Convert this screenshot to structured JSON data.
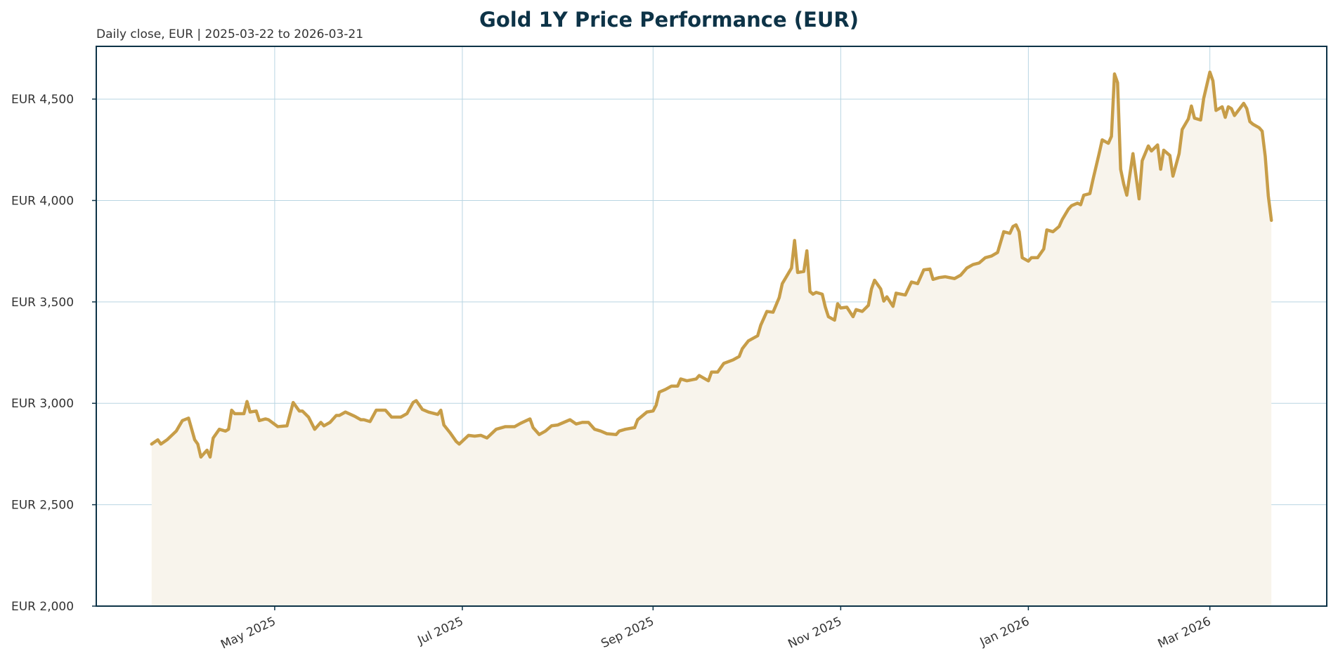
{
  "chart_data": {
    "type": "line",
    "title": "Gold 1Y Price Performance (EUR)",
    "subtitle": "Daily close, EUR | 2025-03-22 to 2026-03-21",
    "color": "#c79d48",
    "area_color": "#f8f4ec",
    "grid": true,
    "xlim": [
      "2025-03-04",
      "2026-04-08"
    ],
    "xticks": [
      {
        "value": "2025-05-01",
        "label": "May 2025"
      },
      {
        "value": "2025-07-01",
        "label": "Jul 2025"
      },
      {
        "value": "2025-09-01",
        "label": "Sep 2025"
      },
      {
        "value": "2025-11-01",
        "label": "Nov 2025"
      },
      {
        "value": "2026-01-01",
        "label": "Jan 2026"
      },
      {
        "value": "2026-03-01",
        "label": "Mar 2026"
      }
    ],
    "ylim": [
      2000,
      4760
    ],
    "yticks": [
      {
        "value": 2000,
        "label": "EUR 2,000"
      },
      {
        "value": 2500,
        "label": "EUR 2,500"
      },
      {
        "value": 3000,
        "label": "EUR 3,000"
      },
      {
        "value": 3500,
        "label": "EUR 3,500"
      },
      {
        "value": 4000,
        "label": "EUR 4,000"
      },
      {
        "value": 4500,
        "label": "EUR 4,500"
      }
    ],
    "x": [
      "2025-03-22",
      "2025-03-24",
      "2025-03-25",
      "2025-03-27",
      "2025-03-30",
      "2025-04-01",
      "2025-04-03",
      "2025-04-05",
      "2025-04-06",
      "2025-04-07",
      "2025-04-09",
      "2025-04-10",
      "2025-04-11",
      "2025-04-13",
      "2025-04-15",
      "2025-04-16",
      "2025-04-17",
      "2025-04-18",
      "2025-04-21",
      "2025-04-22",
      "2025-04-23",
      "2025-04-25",
      "2025-04-26",
      "2025-04-28",
      "2025-04-29",
      "2025-05-02",
      "2025-05-05",
      "2025-05-07",
      "2025-05-09",
      "2025-05-10",
      "2025-05-12",
      "2025-05-14",
      "2025-05-16",
      "2025-05-17",
      "2025-05-19",
      "2025-05-21",
      "2025-05-22",
      "2025-05-24",
      "2025-05-27",
      "2025-05-29",
      "2025-05-30",
      "2025-06-01",
      "2025-06-03",
      "2025-06-05",
      "2025-06-06",
      "2025-06-08",
      "2025-06-09",
      "2025-06-11",
      "2025-06-13",
      "2025-06-15",
      "2025-06-16",
      "2025-06-18",
      "2025-06-20",
      "2025-06-23",
      "2025-06-24",
      "2025-06-25",
      "2025-06-27",
      "2025-06-29",
      "2025-06-30",
      "2025-07-03",
      "2025-07-05",
      "2025-07-07",
      "2025-07-09",
      "2025-07-12",
      "2025-07-15",
      "2025-07-18",
      "2025-07-20",
      "2025-07-23",
      "2025-07-24",
      "2025-07-26",
      "2025-07-28",
      "2025-07-30",
      "2025-08-01",
      "2025-08-05",
      "2025-08-07",
      "2025-08-09",
      "2025-08-11",
      "2025-08-13",
      "2025-08-15",
      "2025-08-17",
      "2025-08-20",
      "2025-08-21",
      "2025-08-23",
      "2025-08-26",
      "2025-08-27",
      "2025-08-30",
      "2025-09-01",
      "2025-09-02",
      "2025-09-03",
      "2025-09-05",
      "2025-09-07",
      "2025-09-09",
      "2025-09-10",
      "2025-09-12",
      "2025-09-15",
      "2025-09-16",
      "2025-09-19",
      "2025-09-20",
      "2025-09-22",
      "2025-09-24",
      "2025-09-27",
      "2025-09-29",
      "2025-09-30",
      "2025-10-02",
      "2025-10-05",
      "2025-10-06",
      "2025-10-08",
      "2025-10-10",
      "2025-10-12",
      "2025-10-13",
      "2025-10-16",
      "2025-10-17",
      "2025-10-18",
      "2025-10-20",
      "2025-10-21",
      "2025-10-22",
      "2025-10-23",
      "2025-10-24",
      "2025-10-26",
      "2025-10-27",
      "2025-10-28",
      "2025-10-30",
      "2025-10-31",
      "2025-11-01",
      "2025-11-03",
      "2025-11-05",
      "2025-11-06",
      "2025-11-08",
      "2025-11-10",
      "2025-11-11",
      "2025-11-12",
      "2025-11-14",
      "2025-11-15",
      "2025-11-16",
      "2025-11-18",
      "2025-11-19",
      "2025-11-22",
      "2025-11-24",
      "2025-11-26",
      "2025-11-28",
      "2025-11-30",
      "2025-12-01",
      "2025-12-03",
      "2025-12-05",
      "2025-12-08",
      "2025-12-10",
      "2025-12-12",
      "2025-12-14",
      "2025-12-16",
      "2025-12-18",
      "2025-12-20",
      "2025-12-22",
      "2025-12-23",
      "2025-12-24",
      "2025-12-26",
      "2025-12-27",
      "2025-12-28",
      "2025-12-29",
      "2025-12-30",
      "2026-01-01",
      "2026-01-02",
      "2026-01-04",
      "2026-01-06",
      "2026-01-07",
      "2026-01-09",
      "2026-01-11",
      "2026-01-12",
      "2026-01-14",
      "2026-01-15",
      "2026-01-17",
      "2026-01-18",
      "2026-01-19",
      "2026-01-21",
      "2026-01-22",
      "2026-01-24",
      "2026-01-25",
      "2026-01-27",
      "2026-01-28",
      "2026-01-29",
      "2026-01-30",
      "2026-01-31",
      "2026-02-01",
      "2026-02-02",
      "2026-02-04",
      "2026-02-06",
      "2026-02-07",
      "2026-02-09",
      "2026-02-10",
      "2026-02-12",
      "2026-02-13",
      "2026-02-14",
      "2026-02-16",
      "2026-02-17",
      "2026-02-19",
      "2026-02-20",
      "2026-02-22",
      "2026-02-23",
      "2026-02-24",
      "2026-02-26",
      "2026-02-27",
      "2026-03-01",
      "2026-03-02",
      "2026-03-03",
      "2026-03-05",
      "2026-03-06",
      "2026-03-07",
      "2026-03-08",
      "2026-03-09",
      "2026-03-12",
      "2026-03-13",
      "2026-03-14",
      "2026-03-15",
      "2026-03-17",
      "2026-03-18",
      "2026-03-19",
      "2026-03-20",
      "2026-03-21"
    ],
    "values": [
      2799,
      2820,
      2799,
      2820,
      2863,
      2915,
      2927,
      2820,
      2799,
      2735,
      2769,
      2735,
      2829,
      2872,
      2863,
      2872,
      2966,
      2949,
      2949,
      3009,
      2957,
      2962,
      2915,
      2923,
      2919,
      2885,
      2889,
      3004,
      2962,
      2962,
      2932,
      2872,
      2906,
      2889,
      2906,
      2940,
      2940,
      2957,
      2936,
      2919,
      2919,
      2910,
      2966,
      2966,
      2966,
      2932,
      2932,
      2932,
      2949,
      3004,
      3013,
      2970,
      2957,
      2945,
      2966,
      2893,
      2855,
      2812,
      2799,
      2842,
      2838,
      2842,
      2829,
      2872,
      2885,
      2885,
      2902,
      2923,
      2880,
      2846,
      2863,
      2889,
      2893,
      2919,
      2898,
      2906,
      2906,
      2872,
      2863,
      2850,
      2846,
      2863,
      2872,
      2880,
      2919,
      2957,
      2962,
      2991,
      3055,
      3068,
      3085,
      3085,
      3120,
      3111,
      3120,
      3137,
      3111,
      3154,
      3154,
      3197,
      3214,
      3231,
      3269,
      3308,
      3333,
      3385,
      3453,
      3449,
      3521,
      3590,
      3667,
      3803,
      3645,
      3650,
      3752,
      3551,
      3538,
      3547,
      3538,
      3474,
      3427,
      3410,
      3491,
      3470,
      3474,
      3427,
      3462,
      3453,
      3483,
      3564,
      3607,
      3564,
      3504,
      3525,
      3478,
      3543,
      3534,
      3598,
      3590,
      3658,
      3662,
      3611,
      3620,
      3624,
      3615,
      3632,
      3667,
      3684,
      3692,
      3718,
      3726,
      3744,
      3795,
      3846,
      3838,
      3872,
      3880,
      3846,
      3718,
      3701,
      3718,
      3718,
      3761,
      3855,
      3846,
      3872,
      3906,
      3957,
      3974,
      3987,
      3979,
      4026,
      4034,
      4103,
      4231,
      4299,
      4282,
      4316,
      4624,
      4581,
      4154,
      4081,
      4026,
      4231,
      4008,
      4196,
      4269,
      4244,
      4274,
      4154,
      4248,
      4222,
      4120,
      4231,
      4350,
      4402,
      4466,
      4406,
      4397,
      4504,
      4633,
      4590,
      4444,
      4462,
      4410,
      4462,
      4453,
      4419,
      4479,
      4453,
      4389,
      4376,
      4359,
      4342,
      4218,
      4022,
      3902
    ]
  }
}
